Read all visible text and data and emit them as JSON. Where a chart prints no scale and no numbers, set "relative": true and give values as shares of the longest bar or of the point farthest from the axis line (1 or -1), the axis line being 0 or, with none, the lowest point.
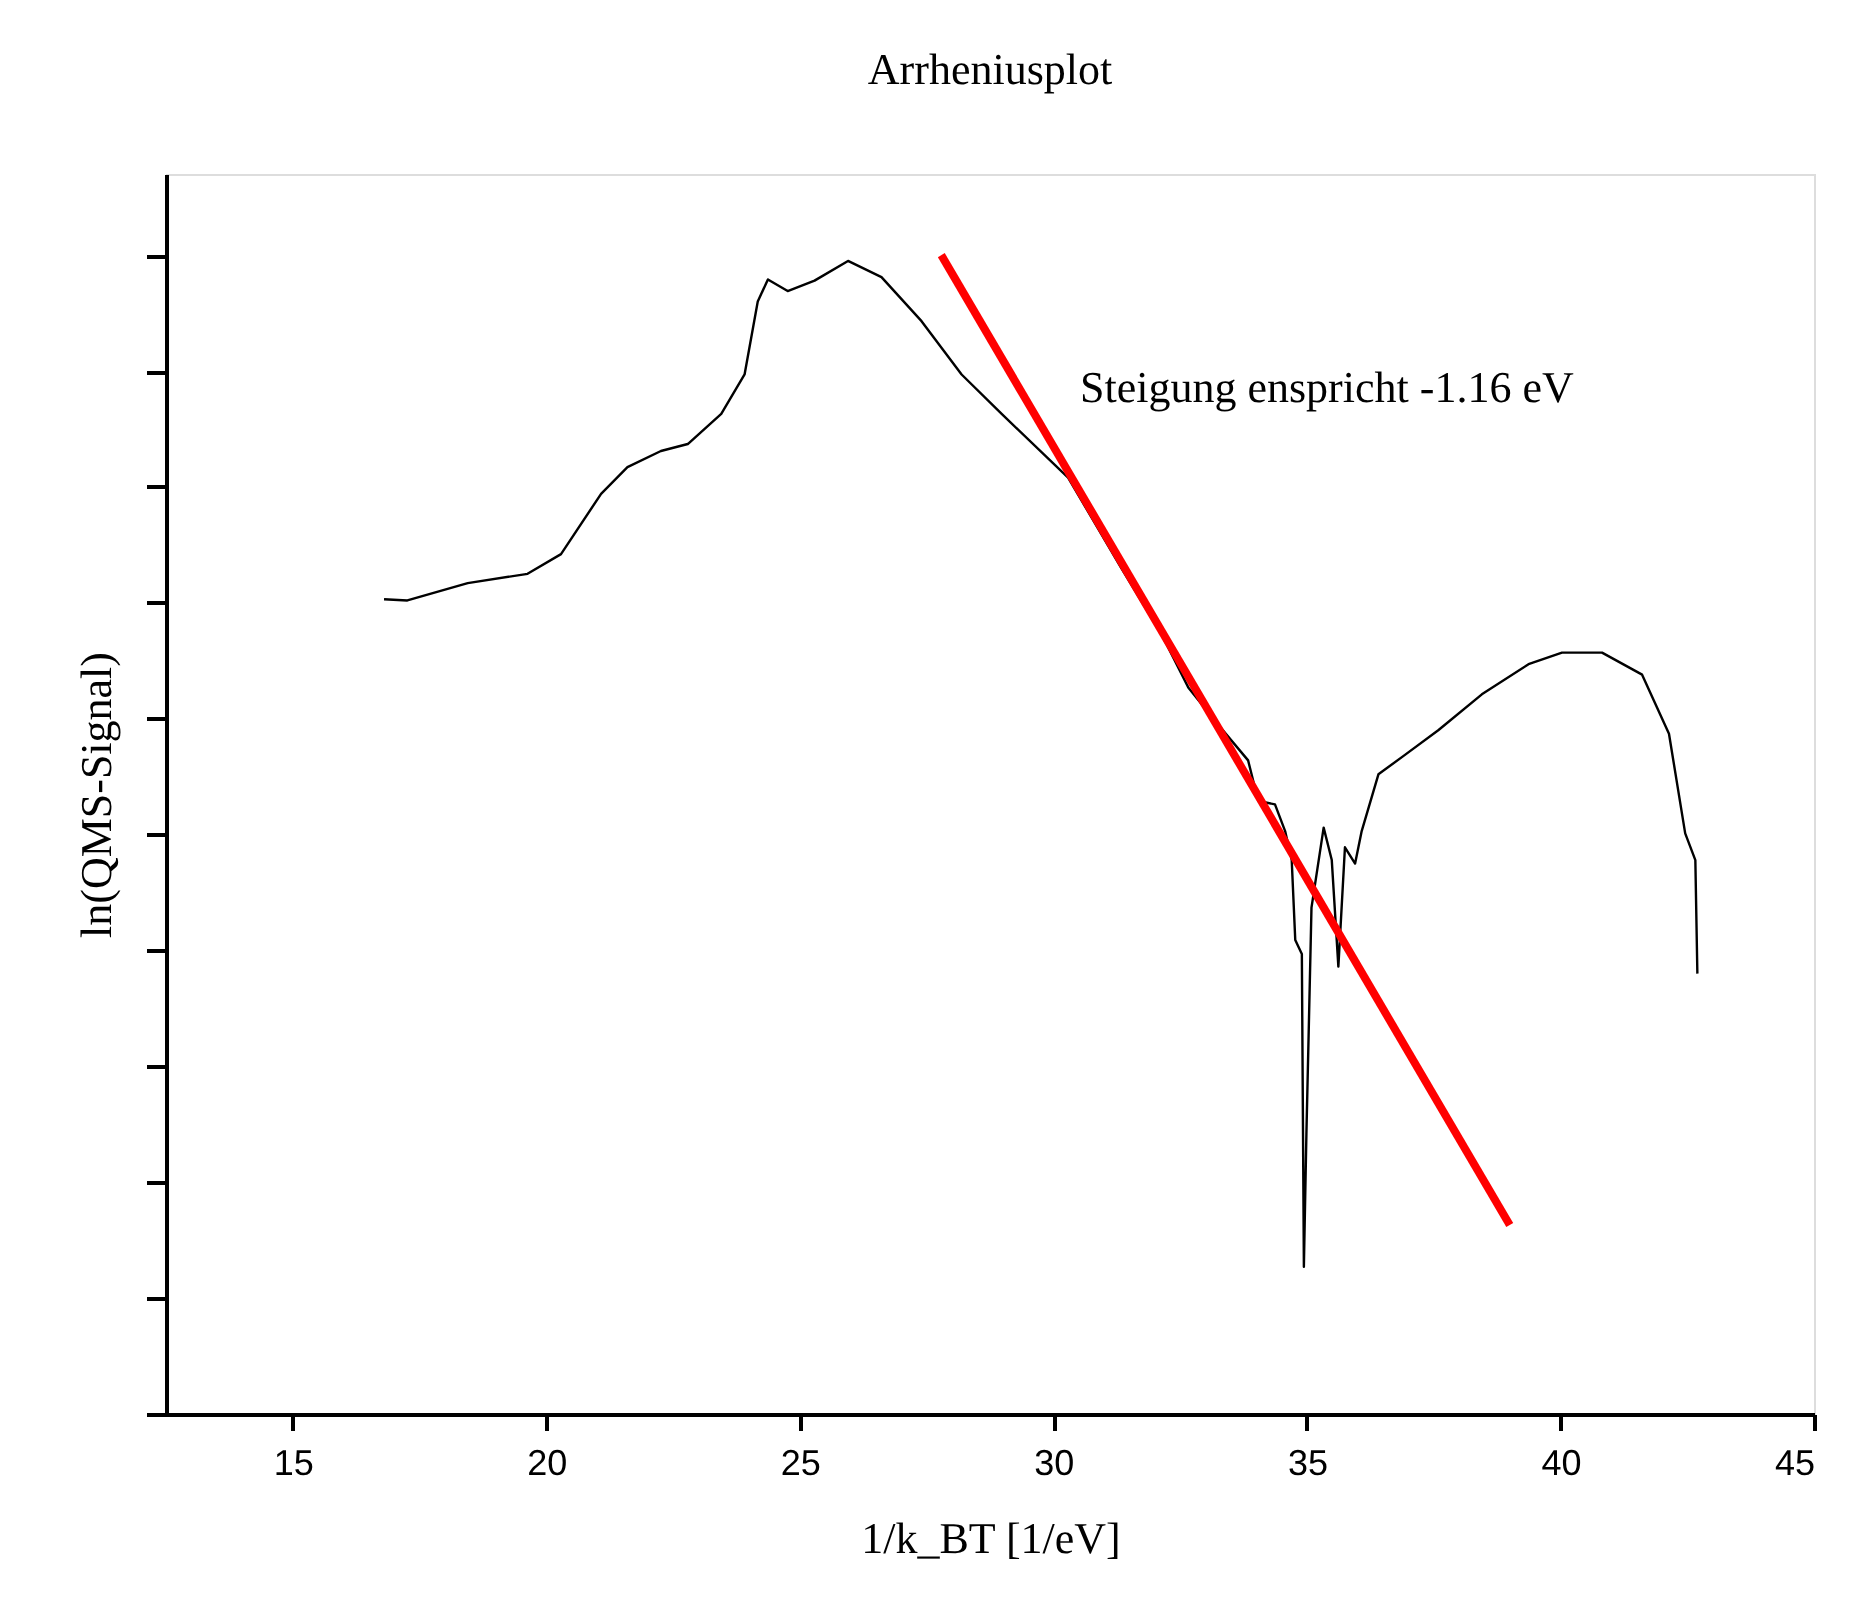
{
  "chart_data": {
    "type": "line",
    "title": "Arrheniusplot",
    "xlabel": "1/k_BT [1/eV]",
    "ylabel": "ln(QMS-Signal)",
    "relative": true,
    "xlim": [
      12.5,
      45
    ],
    "xticks": [
      15,
      20,
      25,
      30,
      35,
      40,
      45
    ],
    "grid": false,
    "marker": "none",
    "line_style": "solid",
    "annotations": [
      "Steigung enspricht -1.16 eV"
    ],
    "series": [
      {
        "color": "#000000",
        "x": [
          16.8,
          17.26,
          18.45,
          19.63,
          20.29,
          21.08,
          21.6,
          22.26,
          22.79,
          23.45,
          23.91,
          24.17,
          24.37,
          24.76,
          25.29,
          25.95,
          26.61,
          27.4,
          28.19,
          28.98,
          30.29,
          31.34,
          32.13,
          32.66,
          33.19,
          33.84,
          34.04,
          34.37,
          34.57,
          34.7,
          34.77,
          34.9,
          34.94,
          34.99,
          35.09,
          35.33,
          35.49,
          35.62,
          35.75,
          35.95,
          36.08,
          36.41,
          36.94,
          37.59,
          38.45,
          39.37,
          40.03,
          40.82,
          41.61,
          42.14,
          42.46,
          42.66,
          42.7
        ],
        "values": [
          0.703,
          0.702,
          0.717,
          0.725,
          0.742,
          0.794,
          0.817,
          0.831,
          0.837,
          0.863,
          0.897,
          0.96,
          0.979,
          0.969,
          0.978,
          0.995,
          0.981,
          0.943,
          0.897,
          0.863,
          0.808,
          0.73,
          0.673,
          0.627,
          0.598,
          0.564,
          0.529,
          0.526,
          0.503,
          0.478,
          0.409,
          0.397,
          0.127,
          0.242,
          0.437,
          0.506,
          0.478,
          0.386,
          0.489,
          0.475,
          0.503,
          0.552,
          0.569,
          0.59,
          0.621,
          0.647,
          0.657,
          0.657,
          0.638,
          0.587,
          0.501,
          0.478,
          0.38
        ]
      },
      {
        "type": "line",
        "color": "#ff0000",
        "x": [
          27.79,
          39.0
        ],
        "values": [
          1.0,
          0.163
        ]
      }
    ]
  }
}
